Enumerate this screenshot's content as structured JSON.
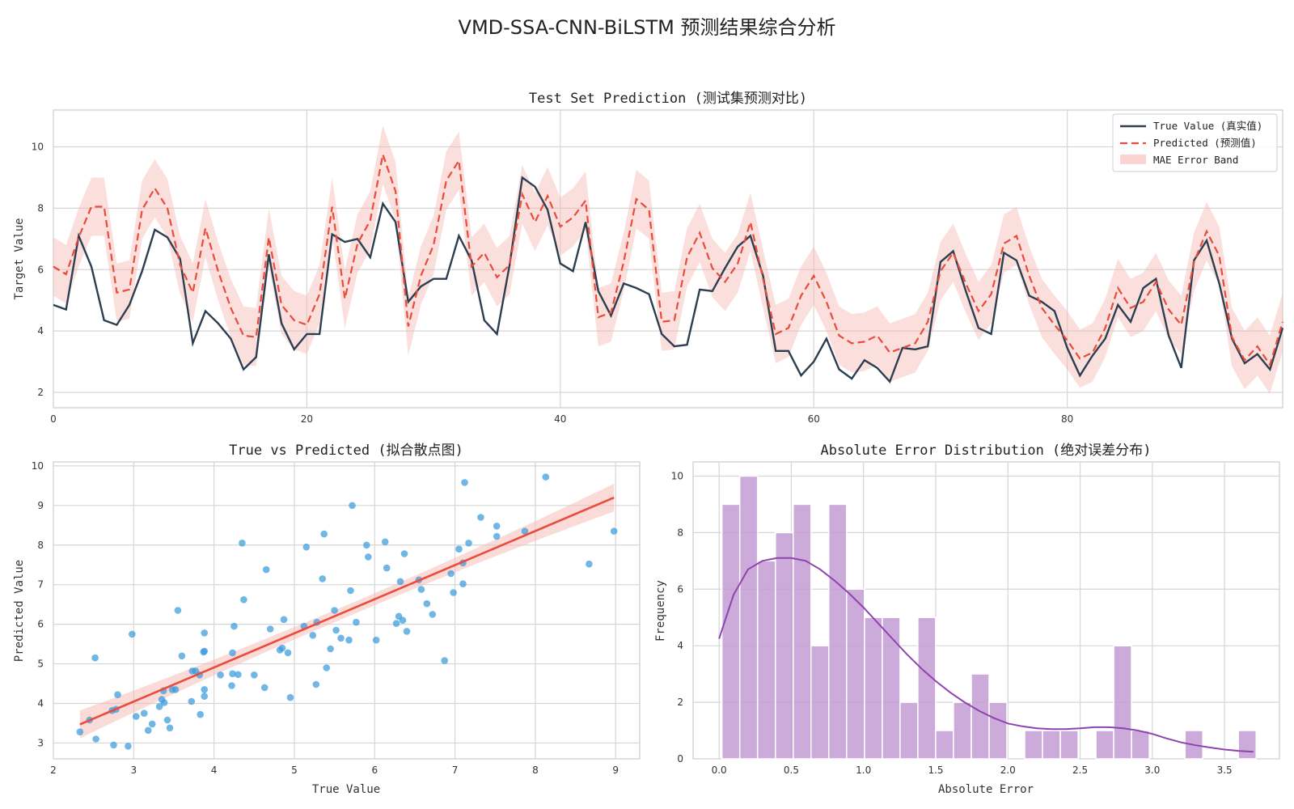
{
  "figure_title": "VMD-SSA-CNN-BiLSTM 预测结果综合分析",
  "chart_data": [
    {
      "type": "line",
      "title": "Test Set Prediction (测试集预测对比)",
      "xlabel": "",
      "ylabel": "Target Value",
      "xlim": [
        0,
        97
      ],
      "ylim": [
        1.5,
        11.2
      ],
      "xticks": [
        "0",
        "20",
        "40",
        "60",
        "80"
      ],
      "xtick_values": [
        0,
        20,
        40,
        60,
        80
      ],
      "yticks": [
        "2",
        "4",
        "6",
        "8",
        "10"
      ],
      "ytick_values": [
        2,
        4,
        6,
        8,
        10
      ],
      "grid": true,
      "legend_position": "top-right",
      "legend": [
        "True Value (真实值)",
        "Predicted (预测值)",
        "MAE Error Band"
      ],
      "band_halfwidth": 0.95,
      "colors": {
        "true": "#2c3e50",
        "pred": "#e74c3c",
        "band": "#f5b7b1"
      },
      "series": [
        {
          "name": "True Value (真实值)",
          "values": [
            4.85,
            4.7,
            7.1,
            6.1,
            4.35,
            4.2,
            4.85,
            5.95,
            7.3,
            7.05,
            6.35,
            3.6,
            4.65,
            4.25,
            3.75,
            2.75,
            3.15,
            6.5,
            4.25,
            3.4,
            3.9,
            3.9,
            7.15,
            6.9,
            7.0,
            6.4,
            8.15,
            7.55,
            4.95,
            5.45,
            5.7,
            5.7,
            7.1,
            6.3,
            4.35,
            3.9,
            6.15,
            9.0,
            8.7,
            7.95,
            6.2,
            5.95,
            7.55,
            5.3,
            4.5,
            5.55,
            5.4,
            5.2,
            3.9,
            3.5,
            3.55,
            5.35,
            5.3,
            6.05,
            6.75,
            7.1,
            5.8,
            3.35,
            3.35,
            2.55,
            3.0,
            3.75,
            2.75,
            2.45,
            3.05,
            2.8,
            2.35,
            3.45,
            3.4,
            3.5,
            6.25,
            6.6,
            5.3,
            4.1,
            3.9,
            6.55,
            6.3,
            5.15,
            4.95,
            4.65,
            3.45,
            2.55,
            3.2,
            3.75,
            4.85,
            4.3,
            5.4,
            5.7,
            3.85,
            2.8,
            6.3,
            6.95,
            5.55,
            3.75,
            2.95,
            3.25,
            2.75,
            4.1
          ]
        },
        {
          "name": "Predicted (预测值)",
          "values": [
            6.1,
            5.85,
            7.05,
            8.05,
            8.05,
            5.25,
            5.35,
            7.95,
            8.65,
            8.0,
            6.15,
            5.25,
            7.35,
            5.95,
            4.75,
            3.85,
            3.8,
            7.05,
            4.85,
            4.35,
            4.2,
            5.2,
            8.05,
            5.05,
            6.85,
            7.6,
            9.75,
            8.55,
            4.15,
            5.8,
            6.8,
            8.9,
            9.55,
            6.1,
            6.55,
            5.75,
            6.15,
            8.45,
            7.55,
            8.4,
            7.4,
            7.7,
            8.25,
            4.45,
            4.6,
            6.25,
            8.3,
            7.95,
            4.3,
            4.35,
            6.4,
            7.2,
            6.05,
            5.6,
            6.2,
            7.55,
            5.7,
            3.9,
            4.1,
            5.15,
            5.8,
            4.95,
            3.85,
            3.6,
            3.65,
            3.85,
            3.3,
            3.45,
            3.6,
            4.3,
            5.95,
            6.55,
            5.55,
            4.65,
            5.2,
            6.85,
            7.1,
            5.8,
            4.75,
            4.2,
            3.7,
            3.1,
            3.3,
            4.1,
            5.4,
            4.75,
            4.95,
            5.6,
            4.7,
            4.2,
            6.25,
            7.25,
            6.45,
            3.8,
            3.05,
            3.5,
            2.9,
            4.3
          ]
        }
      ]
    },
    {
      "type": "scatter",
      "title": "True vs Predicted (拟合散点图)",
      "xlabel": "True Value",
      "ylabel": "Predicted Value",
      "xlim": [
        2.0,
        9.3
      ],
      "ylim": [
        2.6,
        10.1
      ],
      "xticks": [
        "2",
        "3",
        "4",
        "5",
        "6",
        "7",
        "8",
        "9"
      ],
      "xtick_values": [
        2,
        3,
        4,
        5,
        6,
        7,
        8,
        9
      ],
      "yticks": [
        "3",
        "4",
        "5",
        "6",
        "7",
        "8",
        "9",
        "10"
      ],
      "ytick_values": [
        3,
        4,
        5,
        6,
        7,
        8,
        9,
        10
      ],
      "grid": true,
      "colors": {
        "points": "#3498db",
        "fit": "#e74c3c",
        "ci": "#f5b7b1"
      },
      "fit_line": {
        "x": [
          2.33,
          8.98
        ],
        "y": [
          3.47,
          9.2
        ]
      },
      "ci_halfwidth_ends": 0.35,
      "ci_halfwidth_mid": 0.15,
      "points": [
        [
          2.33,
          3.28
        ],
        [
          2.45,
          3.58
        ],
        [
          2.52,
          5.15
        ],
        [
          2.53,
          3.1
        ],
        [
          2.73,
          3.82
        ],
        [
          2.75,
          2.95
        ],
        [
          2.78,
          3.85
        ],
        [
          2.8,
          4.22
        ],
        [
          2.93,
          2.92
        ],
        [
          2.98,
          5.75
        ],
        [
          3.03,
          3.67
        ],
        [
          3.13,
          3.75
        ],
        [
          3.18,
          3.32
        ],
        [
          3.23,
          3.48
        ],
        [
          3.32,
          3.92
        ],
        [
          3.35,
          4.1
        ],
        [
          3.37,
          4.32
        ],
        [
          3.38,
          4.02
        ],
        [
          3.42,
          3.58
        ],
        [
          3.45,
          3.38
        ],
        [
          3.48,
          4.35
        ],
        [
          3.52,
          4.35
        ],
        [
          3.55,
          6.35
        ],
        [
          3.6,
          5.2
        ],
        [
          3.72,
          4.05
        ],
        [
          3.73,
          4.82
        ],
        [
          3.77,
          4.82
        ],
        [
          3.82,
          4.72
        ],
        [
          3.83,
          3.72
        ],
        [
          3.87,
          5.3
        ],
        [
          3.88,
          5.32
        ],
        [
          3.88,
          4.18
        ],
        [
          3.88,
          4.35
        ],
        [
          3.88,
          5.78
        ],
        [
          4.08,
          4.72
        ],
        [
          4.22,
          4.45
        ],
        [
          4.23,
          4.75
        ],
        [
          4.23,
          5.28
        ],
        [
          4.25,
          5.95
        ],
        [
          4.3,
          4.73
        ],
        [
          4.35,
          8.05
        ],
        [
          4.37,
          6.62
        ],
        [
          4.5,
          4.72
        ],
        [
          4.63,
          4.4
        ],
        [
          4.65,
          7.38
        ],
        [
          4.7,
          5.88
        ],
        [
          4.82,
          5.35
        ],
        [
          4.85,
          5.4
        ],
        [
          4.87,
          6.12
        ],
        [
          4.92,
          5.28
        ],
        [
          4.95,
          4.15
        ],
        [
          5.12,
          5.95
        ],
        [
          5.15,
          7.95
        ],
        [
          5.23,
          5.72
        ],
        [
          5.27,
          4.48
        ],
        [
          5.28,
          6.05
        ],
        [
          5.35,
          7.15
        ],
        [
          5.37,
          8.28
        ],
        [
          5.4,
          4.9
        ],
        [
          5.45,
          5.38
        ],
        [
          5.5,
          6.35
        ],
        [
          5.52,
          5.85
        ],
        [
          5.58,
          5.65
        ],
        [
          5.68,
          5.6
        ],
        [
          5.7,
          6.85
        ],
        [
          5.72,
          9.0
        ],
        [
          5.77,
          6.05
        ],
        [
          5.9,
          8.0
        ],
        [
          5.92,
          7.7
        ],
        [
          6.02,
          5.6
        ],
        [
          6.13,
          8.08
        ],
        [
          6.15,
          7.42
        ],
        [
          6.27,
          6.02
        ],
        [
          6.3,
          6.2
        ],
        [
          6.32,
          7.08
        ],
        [
          6.35,
          6.1
        ],
        [
          6.37,
          7.78
        ],
        [
          6.4,
          5.82
        ],
        [
          6.55,
          7.12
        ],
        [
          6.58,
          6.88
        ],
        [
          6.65,
          6.52
        ],
        [
          6.72,
          6.25
        ],
        [
          6.87,
          5.08
        ],
        [
          6.95,
          7.28
        ],
        [
          6.98,
          6.8
        ],
        [
          7.05,
          7.9
        ],
        [
          7.1,
          7.02
        ],
        [
          7.1,
          7.55
        ],
        [
          7.12,
          9.58
        ],
        [
          7.17,
          8.05
        ],
        [
          7.32,
          8.7
        ],
        [
          7.52,
          8.48
        ],
        [
          7.52,
          8.22
        ],
        [
          7.87,
          8.35
        ],
        [
          8.13,
          9.72
        ],
        [
          8.67,
          7.52
        ],
        [
          8.98,
          8.35
        ]
      ]
    },
    {
      "type": "bar",
      "title": "Absolute Error Distribution (绝对误差分布)",
      "xlabel": "Absolute Error",
      "ylabel": "Frequency",
      "xlim": [
        -0.18,
        3.88
      ],
      "ylim": [
        0,
        10.5
      ],
      "xticks": [
        "0.0",
        "0.5",
        "1.0",
        "1.5",
        "2.0",
        "2.5",
        "3.0",
        "3.5"
      ],
      "xtick_values": [
        0,
        0.5,
        1.0,
        1.5,
        2.0,
        2.5,
        3.0,
        3.5
      ],
      "yticks": [
        "0",
        "2",
        "4",
        "6",
        "8",
        "10"
      ],
      "ytick_values": [
        0,
        2,
        4,
        6,
        8,
        10
      ],
      "grid": true,
      "colors": {
        "bars": "#c39bd3",
        "kde": "#8e44ad"
      },
      "bin_start": 0.02,
      "bin_width": 0.1233,
      "values": [
        9,
        10,
        7,
        8,
        9,
        4,
        9,
        6,
        5,
        5,
        2,
        5,
        1,
        2,
        3,
        2,
        0,
        1,
        1,
        1,
        0,
        1,
        4,
        1,
        0,
        0,
        1,
        0,
        0,
        1
      ],
      "kde": [
        [
          0.0,
          4.25
        ],
        [
          0.1,
          5.8
        ],
        [
          0.2,
          6.7
        ],
        [
          0.3,
          7.0
        ],
        [
          0.4,
          7.1
        ],
        [
          0.5,
          7.1
        ],
        [
          0.6,
          7.0
        ],
        [
          0.7,
          6.7
        ],
        [
          0.8,
          6.3
        ],
        [
          0.9,
          5.85
        ],
        [
          1.0,
          5.35
        ],
        [
          1.1,
          4.8
        ],
        [
          1.2,
          4.25
        ],
        [
          1.3,
          3.7
        ],
        [
          1.4,
          3.2
        ],
        [
          1.5,
          2.75
        ],
        [
          1.6,
          2.35
        ],
        [
          1.7,
          2.0
        ],
        [
          1.8,
          1.7
        ],
        [
          1.9,
          1.45
        ],
        [
          2.0,
          1.25
        ],
        [
          2.1,
          1.15
        ],
        [
          2.2,
          1.08
        ],
        [
          2.3,
          1.05
        ],
        [
          2.4,
          1.05
        ],
        [
          2.5,
          1.08
        ],
        [
          2.6,
          1.12
        ],
        [
          2.7,
          1.12
        ],
        [
          2.8,
          1.08
        ],
        [
          2.9,
          1.0
        ],
        [
          3.0,
          0.88
        ],
        [
          3.1,
          0.72
        ],
        [
          3.2,
          0.58
        ],
        [
          3.3,
          0.48
        ],
        [
          3.4,
          0.4
        ],
        [
          3.5,
          0.33
        ],
        [
          3.6,
          0.28
        ],
        [
          3.7,
          0.25
        ]
      ]
    }
  ]
}
